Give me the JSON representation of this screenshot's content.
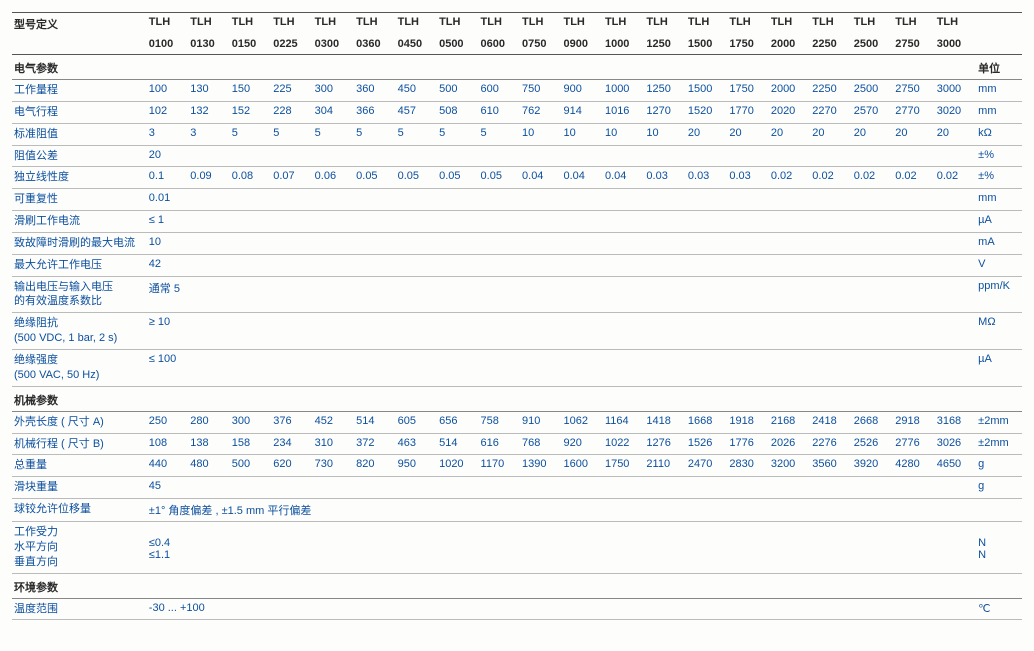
{
  "header": {
    "label": "型号定义",
    "unit_label": "单位",
    "topRow": [
      "TLH",
      "TLH",
      "TLH",
      "TLH",
      "TLH",
      "TLH",
      "TLH",
      "TLH",
      "TLH",
      "TLH",
      "TLH",
      "TLH",
      "TLH",
      "TLH",
      "TLH",
      "TLH",
      "TLH",
      "TLH",
      "TLH",
      "TLH"
    ],
    "bottomRow": [
      "0100",
      "0130",
      "0150",
      "0225",
      "0300",
      "0360",
      "0450",
      "0500",
      "0600",
      "0750",
      "0900",
      "1000",
      "1250",
      "1500",
      "1750",
      "2000",
      "2250",
      "2500",
      "2750",
      "3000"
    ]
  },
  "sections": [
    {
      "title": "电气参数",
      "rows": [
        {
          "label": "工作量程",
          "unit": "mm",
          "vals": [
            "100",
            "130",
            "150",
            "225",
            "300",
            "360",
            "450",
            "500",
            "600",
            "750",
            "900",
            "1000",
            "1250",
            "1500",
            "1750",
            "2000",
            "2250",
            "2500",
            "2750",
            "3000"
          ]
        },
        {
          "label": "电气行程",
          "unit": "mm",
          "vals": [
            "102",
            "132",
            "152",
            "228",
            "304",
            "366",
            "457",
            "508",
            "610",
            "762",
            "914",
            "1016",
            "1270",
            "1520",
            "1770",
            "2020",
            "2270",
            "2570",
            "2770",
            "3020"
          ]
        },
        {
          "label": "标准阻值",
          "unit": "kΩ",
          "vals": [
            "3",
            "3",
            "5",
            "5",
            "5",
            "5",
            "5",
            "5",
            "5",
            "10",
            "10",
            "10",
            "10",
            "20",
            "20",
            "20",
            "20",
            "20",
            "20",
            "20"
          ]
        },
        {
          "label": "阻值公差",
          "unit": "±%",
          "vals": [
            "20",
            "",
            "",
            "",
            "",
            "",
            "",
            "",
            "",
            "",
            "",
            "",
            "",
            "",
            "",
            "",
            "",
            "",
            "",
            ""
          ]
        },
        {
          "label": "独立线性度",
          "unit": "±%",
          "vals": [
            "0.1",
            "0.09",
            "0.08",
            "0.07",
            "0.06",
            "0.05",
            "0.05",
            "0.05",
            "0.05",
            "0.04",
            "0.04",
            "0.04",
            "0.03",
            "0.03",
            "0.03",
            "0.02",
            "0.02",
            "0.02",
            "0.02",
            "0.02"
          ]
        },
        {
          "label": "可重复性",
          "unit": "mm",
          "vals": [
            "0.01",
            "",
            "",
            "",
            "",
            "",
            "",
            "",
            "",
            "",
            "",
            "",
            "",
            "",
            "",
            "",
            "",
            "",
            "",
            ""
          ]
        },
        {
          "label": "滑刷工作电流",
          "unit": "µA",
          "vals": [
            "≤ 1",
            "",
            "",
            "",
            "",
            "",
            "",
            "",
            "",
            "",
            "",
            "",
            "",
            "",
            "",
            "",
            "",
            "",
            "",
            ""
          ]
        },
        {
          "label": "致故障时滑刷的最大电流",
          "unit": "mA",
          "vals": [
            "10",
            "",
            "",
            "",
            "",
            "",
            "",
            "",
            "",
            "",
            "",
            "",
            "",
            "",
            "",
            "",
            "",
            "",
            "",
            ""
          ]
        },
        {
          "label": "最大允许工作电压",
          "unit": "V",
          "vals": [
            "42",
            "",
            "",
            "",
            "",
            "",
            "",
            "",
            "",
            "",
            "",
            "",
            "",
            "",
            "",
            "",
            "",
            "",
            "",
            ""
          ]
        },
        {
          "label": "输出电压与输入电压\n的有效温度系数比",
          "unit": "ppm/K",
          "vals": [
            "通常 5",
            "",
            "",
            "",
            "",
            "",
            "",
            "",
            "",
            "",
            "",
            "",
            "",
            "",
            "",
            "",
            "",
            "",
            "",
            ""
          ]
        },
        {
          "label": "绝缘阻抗\n(500 VDC, 1 bar, 2 s)",
          "unit": "MΩ",
          "vals": [
            "≥ 10",
            "",
            "",
            "",
            "",
            "",
            "",
            "",
            "",
            "",
            "",
            "",
            "",
            "",
            "",
            "",
            "",
            "",
            "",
            ""
          ]
        },
        {
          "label": "绝缘强度\n(500 VAC, 50 Hz)",
          "unit": "µA",
          "vals": [
            "≤ 100",
            "",
            "",
            "",
            "",
            "",
            "",
            "",
            "",
            "",
            "",
            "",
            "",
            "",
            "",
            "",
            "",
            "",
            "",
            ""
          ]
        }
      ]
    },
    {
      "title": "机械参数",
      "rows": [
        {
          "label": "外壳长度 ( 尺寸 A)",
          "unit": "±2mm",
          "vals": [
            "250",
            "280",
            "300",
            "376",
            "452",
            "514",
            "605",
            "656",
            "758",
            "910",
            "1062",
            "1164",
            "1418",
            "1668",
            "1918",
            "2168",
            "2418",
            "2668",
            "2918",
            "3168"
          ]
        },
        {
          "label": "机械行程 ( 尺寸 B)",
          "unit": "±2mm",
          "vals": [
            "108",
            "138",
            "158",
            "234",
            "310",
            "372",
            "463",
            "514",
            "616",
            "768",
            "920",
            "1022",
            "1276",
            "1526",
            "1776",
            "2026",
            "2276",
            "2526",
            "2776",
            "3026"
          ]
        },
        {
          "label": "总重量",
          "unit": "g",
          "vals": [
            "440",
            "480",
            "500",
            "620",
            "730",
            "820",
            "950",
            "1020",
            "1170",
            "1390",
            "1600",
            "1750",
            "2110",
            "2470",
            "2830",
            "3200",
            "3560",
            "3920",
            "4280",
            "4650"
          ]
        },
        {
          "label": "滑块重量",
          "unit": "g",
          "vals": [
            "45",
            "",
            "",
            "",
            "",
            "",
            "",
            "",
            "",
            "",
            "",
            "",
            "",
            "",
            "",
            "",
            "",
            "",
            "",
            ""
          ]
        },
        {
          "label": "球铰允许位移量",
          "unit": "",
          "span": "±1° 角度偏差 , ±1.5 mm 平行偏差"
        },
        {
          "label": "工作受力\n水平方向\n垂直方向",
          "unit": "\nN\nN",
          "vals": [
            "\n≤0.4\n≤1.1",
            "",
            "",
            "",
            "",
            "",
            "",
            "",
            "",
            "",
            "",
            "",
            "",
            "",
            "",
            "",
            "",
            "",
            "",
            ""
          ]
        }
      ]
    },
    {
      "title": "环境参数",
      "rows": [
        {
          "label": "温度范围",
          "unit": "℃",
          "vals": [
            "-30 ... +100",
            "",
            "",
            "",
            "",
            "",
            "",
            "",
            "",
            "",
            "",
            "",
            "",
            "",
            "",
            "",
            "",
            "",
            "",
            ""
          ]
        }
      ]
    }
  ]
}
